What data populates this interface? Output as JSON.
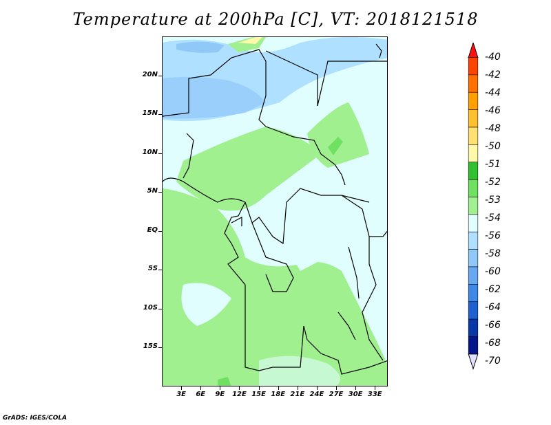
{
  "title": "Temperature at 200hPa [C], VT: 2018121518",
  "footer": "GrADS: IGES/COLA",
  "map": {
    "lon_range": [
      0,
      35
    ],
    "lat_range": [
      -20,
      25
    ],
    "y_ticks": [
      {
        "label": "20N",
        "lat": 20
      },
      {
        "label": "15N",
        "lat": 15
      },
      {
        "label": "10N",
        "lat": 10
      },
      {
        "label": "5N",
        "lat": 5
      },
      {
        "label": "EQ",
        "lat": 0
      },
      {
        "label": "5S",
        "lat": -5
      },
      {
        "label": "10S",
        "lat": -10
      },
      {
        "label": "15S",
        "lat": -15
      }
    ],
    "x_ticks": [
      {
        "label": "3E",
        "lon": 3
      },
      {
        "label": "6E",
        "lon": 6
      },
      {
        "label": "9E",
        "lon": 9
      },
      {
        "label": "12E",
        "lon": 12
      },
      {
        "label": "15E",
        "lon": 15
      },
      {
        "label": "18E",
        "lon": 18
      },
      {
        "label": "21E",
        "lon": 21
      },
      {
        "label": "24E",
        "lon": 24
      },
      {
        "label": "27E",
        "lon": 27
      },
      {
        "label": "30E",
        "lon": 30
      },
      {
        "label": "33E",
        "lon": 33
      }
    ]
  },
  "colorbar": {
    "labels": [
      "-40",
      "-42",
      "-44",
      "-46",
      "-48",
      "-50",
      "-51",
      "-52",
      "-53",
      "-54",
      "-56",
      "-58",
      "-60",
      "-62",
      "-64",
      "-66",
      "-68",
      "-70"
    ],
    "colors": [
      "#ff1010",
      "#ff4400",
      "#ff7000",
      "#ffa000",
      "#ffc030",
      "#ffe070",
      "#fffaaa",
      "#30c030",
      "#70e060",
      "#a0f090",
      "#e0fefe",
      "#b0e0ff",
      "#90c8f8",
      "#68a8f0",
      "#4088e8",
      "#2060d0",
      "#0838a8",
      "#04148a",
      "#000060"
    ],
    "over_color": "#ff1010",
    "under_color": "#e0e0ff"
  }
}
